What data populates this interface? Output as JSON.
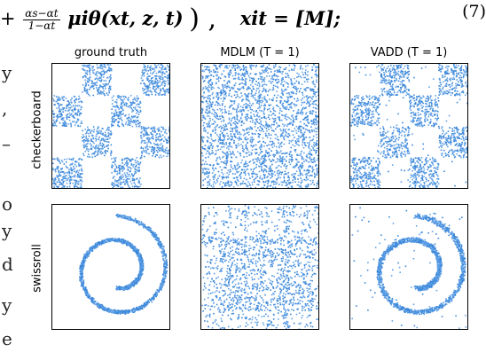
{
  "equation": {
    "leading_op": "+",
    "frac_num": "αs−αt",
    "frac_den": "1−αt",
    "mu_term": "μiθ(xt, z, t)",
    "close": ") ,",
    "assign": "xit = [M];",
    "number": "(7)"
  },
  "margin_glyphs": [
    "y",
    ",",
    "–",
    "o",
    "y",
    "d",
    "y",
    "e"
  ],
  "figure": {
    "columns": [
      "ground truth",
      "MDLM (T = 1)",
      "VADD (T = 1)"
    ],
    "rows": [
      "checkerboard",
      "swissroll"
    ]
  },
  "colors": {
    "dot": "#3a86d8",
    "dot_light": "#5fa0e6"
  }
}
